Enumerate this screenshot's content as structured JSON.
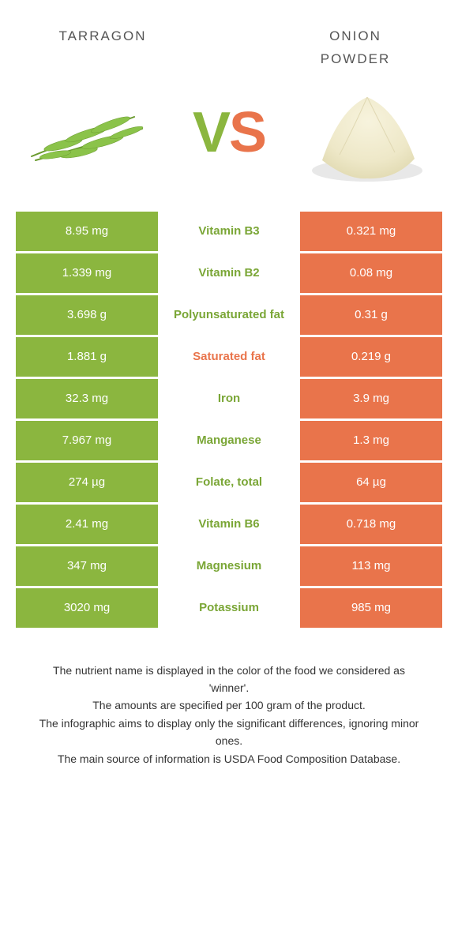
{
  "header": {
    "left_title_a": "tarragon",
    "right_title_a": "onion",
    "right_title_b": "powder",
    "vs_v": "V",
    "vs_s": "S"
  },
  "colors": {
    "left": "#8bb63f",
    "right": "#e9744b",
    "bg": "#ffffff",
    "text": "#333333"
  },
  "rows": [
    {
      "left": "8.95 mg",
      "label": "Vitamin B3",
      "winner": "green",
      "right": "0.321 mg"
    },
    {
      "left": "1.339 mg",
      "label": "Vitamin B2",
      "winner": "green",
      "right": "0.08 mg"
    },
    {
      "left": "3.698 g",
      "label": "Polyunsaturated fat",
      "winner": "green",
      "right": "0.31 g"
    },
    {
      "left": "1.881 g",
      "label": "Saturated fat",
      "winner": "orange",
      "right": "0.219 g"
    },
    {
      "left": "32.3 mg",
      "label": "Iron",
      "winner": "green",
      "right": "3.9 mg"
    },
    {
      "left": "7.967 mg",
      "label": "Manganese",
      "winner": "green",
      "right": "1.3 mg"
    },
    {
      "left": "274 µg",
      "label": "Folate, total",
      "winner": "green",
      "right": "64 µg"
    },
    {
      "left": "2.41 mg",
      "label": "Vitamin B6",
      "winner": "green",
      "right": "0.718 mg"
    },
    {
      "left": "347 mg",
      "label": "Magnesium",
      "winner": "green",
      "right": "113 mg"
    },
    {
      "left": "3020 mg",
      "label": "Potassium",
      "winner": "green",
      "right": "985 mg"
    }
  ],
  "footer": {
    "l1": "The nutrient name is displayed in the color of the food we considered as 'winner'.",
    "l2": "The amounts are specified per 100 gram of the product.",
    "l3": "The infographic aims to display only the significant differences, ignoring minor ones.",
    "l4": "The main source of information is USDA Food Composition Database."
  }
}
